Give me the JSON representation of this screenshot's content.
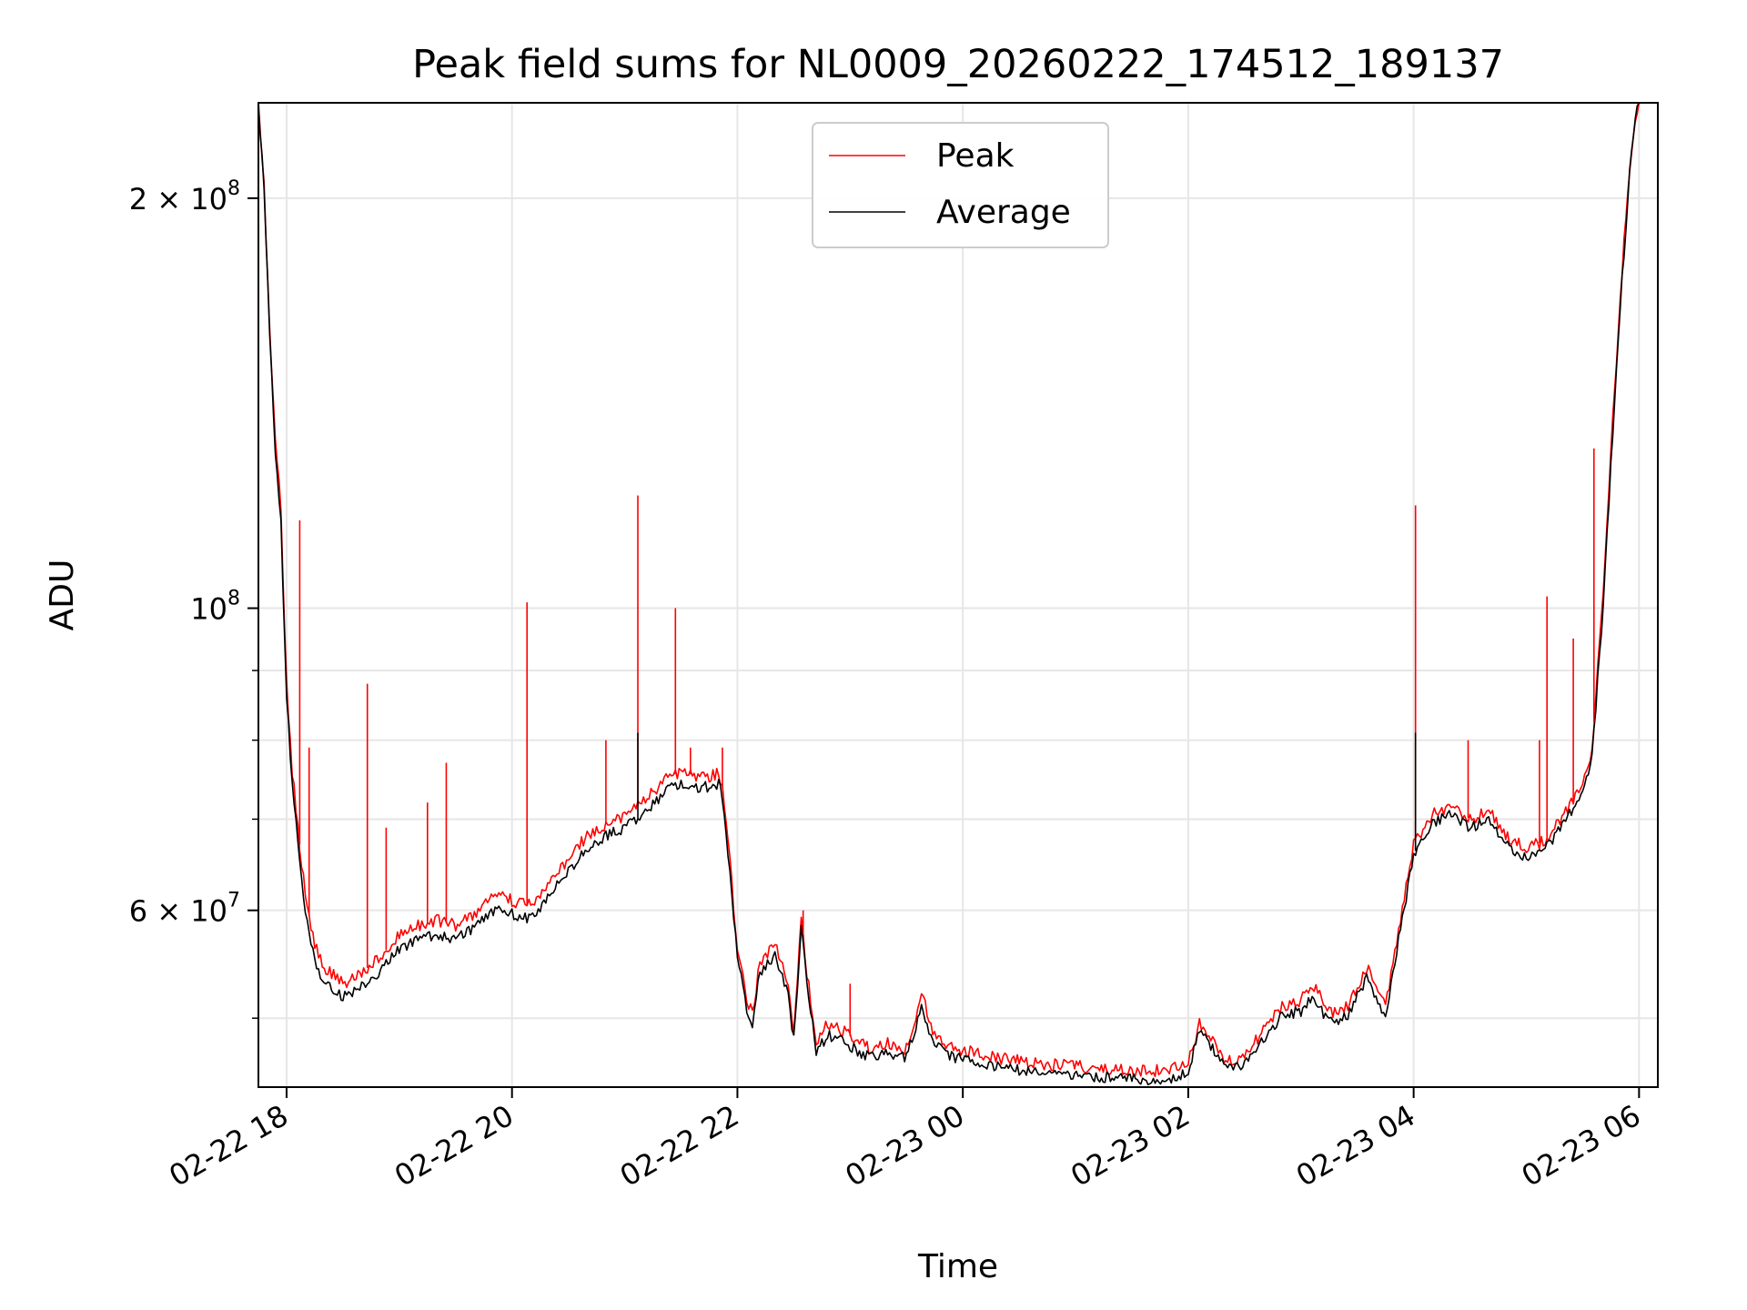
{
  "chart_data": {
    "type": "line",
    "title": "Peak field sums for NL0009_20260222_174512_189137",
    "xlabel": "Time",
    "ylabel": "ADU",
    "y_scale": "log",
    "xlim": [
      "2026-02-22T17:45",
      "2026-02-23T06:10"
    ],
    "ylim": [
      44500000,
      235000000
    ],
    "x_ticks": [
      {
        "value": "2026-02-22T18:00",
        "label": "02-22 18"
      },
      {
        "value": "2026-02-22T20:00",
        "label": "02-22 20"
      },
      {
        "value": "2026-02-22T22:00",
        "label": "02-22 22"
      },
      {
        "value": "2026-02-23T00:00",
        "label": "02-23 00"
      },
      {
        "value": "2026-02-23T02:00",
        "label": "02-23 02"
      },
      {
        "value": "2026-02-23T04:00",
        "label": "02-23 04"
      },
      {
        "value": "2026-02-23T06:00",
        "label": "02-23 06"
      }
    ],
    "y_ticks": [
      {
        "value": 200000000,
        "base": "2 × 10",
        "exp": "8"
      },
      {
        "value": 100000000,
        "base": "10",
        "exp": "8"
      },
      {
        "value": 60000000,
        "base": "6 × 10",
        "exp": "7"
      }
    ],
    "y_minor_ticks": [
      50000000,
      70000000,
      80000000,
      90000000
    ],
    "grid": true,
    "legend": {
      "placement": "top-center"
    },
    "series": [
      {
        "name": "Peak",
        "color": "#ff0000",
        "points": [
          [
            "2026-02-22T17:45",
            235000000
          ],
          [
            "2026-02-22T17:48",
            205000000
          ],
          [
            "2026-02-22T17:51",
            160000000
          ],
          [
            "2026-02-22T17:54",
            134000000
          ],
          [
            "2026-02-22T17:57",
            118000000
          ],
          [
            "2026-02-22T18:00",
            88000000
          ],
          [
            "2026-02-22T18:03",
            76000000
          ],
          [
            "2026-02-22T18:06",
            69000000
          ],
          [
            "2026-02-22T18:10",
            61500000
          ],
          [
            "2026-02-22T18:15",
            56500000
          ],
          [
            "2026-02-22T18:20",
            54500000
          ],
          [
            "2026-02-22T18:30",
            53000000
          ],
          [
            "2026-02-22T18:40",
            54000000
          ],
          [
            "2026-02-22T18:50",
            55500000
          ],
          [
            "2026-02-22T19:00",
            57500000
          ],
          [
            "2026-02-22T19:10",
            58500000
          ],
          [
            "2026-02-22T19:20",
            59000000
          ],
          [
            "2026-02-22T19:30",
            58500000
          ],
          [
            "2026-02-22T19:40",
            59500000
          ],
          [
            "2026-02-22T19:50",
            61500000
          ],
          [
            "2026-02-22T20:00",
            61000000
          ],
          [
            "2026-02-22T20:10",
            60500000
          ],
          [
            "2026-02-22T20:20",
            63000000
          ],
          [
            "2026-02-22T20:30",
            65500000
          ],
          [
            "2026-02-22T20:40",
            68000000
          ],
          [
            "2026-02-22T20:50",
            69500000
          ],
          [
            "2026-02-22T21:00",
            70500000
          ],
          [
            "2026-02-22T21:10",
            72000000
          ],
          [
            "2026-02-22T21:20",
            74500000
          ],
          [
            "2026-02-22T21:30",
            76000000
          ],
          [
            "2026-02-22T21:40",
            75000000
          ],
          [
            "2026-02-22T21:50",
            75500000
          ],
          [
            "2026-02-22T21:52",
            74000000
          ],
          [
            "2026-02-22T21:56",
            65000000
          ],
          [
            "2026-02-22T22:00",
            56500000
          ],
          [
            "2026-02-22T22:05",
            51500000
          ],
          [
            "2026-02-22T22:08",
            50500000
          ],
          [
            "2026-02-22T22:12",
            55000000
          ],
          [
            "2026-02-22T22:20",
            56500000
          ],
          [
            "2026-02-22T22:27",
            53000000
          ],
          [
            "2026-02-22T22:30",
            49000000
          ],
          [
            "2026-02-22T22:34",
            59500000
          ],
          [
            "2026-02-22T22:37",
            54000000
          ],
          [
            "2026-02-22T22:42",
            48000000
          ],
          [
            "2026-02-22T22:48",
            49500000
          ],
          [
            "2026-02-22T22:55",
            49000000
          ],
          [
            "2026-02-22T23:00",
            48500000
          ],
          [
            "2026-02-22T23:10",
            47500000
          ],
          [
            "2026-02-22T23:20",
            48000000
          ],
          [
            "2026-02-22T23:30",
            47500000
          ],
          [
            "2026-02-22T23:38",
            52000000
          ],
          [
            "2026-02-22T23:45",
            48500000
          ],
          [
            "2026-02-22T23:55",
            47500000
          ],
          [
            "2026-02-23T00:10",
            47000000
          ],
          [
            "2026-02-23T00:30",
            46500000
          ],
          [
            "2026-02-23T00:50",
            46200000
          ],
          [
            "2026-02-23T01:10",
            46000000
          ],
          [
            "2026-02-23T01:30",
            45800000
          ],
          [
            "2026-02-23T01:50",
            45700000
          ],
          [
            "2026-02-23T02:00",
            46500000
          ],
          [
            "2026-02-23T02:06",
            49500000
          ],
          [
            "2026-02-23T02:12",
            48500000
          ],
          [
            "2026-02-23T02:20",
            46500000
          ],
          [
            "2026-02-23T02:30",
            47000000
          ],
          [
            "2026-02-23T02:40",
            49000000
          ],
          [
            "2026-02-23T02:50",
            51000000
          ],
          [
            "2026-02-23T03:00",
            51500000
          ],
          [
            "2026-02-23T03:06",
            53000000
          ],
          [
            "2026-02-23T03:15",
            50500000
          ],
          [
            "2026-02-23T03:25",
            51000000
          ],
          [
            "2026-02-23T03:35",
            54500000
          ],
          [
            "2026-02-23T03:45",
            51000000
          ],
          [
            "2026-02-23T03:50",
            56000000
          ],
          [
            "2026-02-23T04:00",
            67000000
          ],
          [
            "2026-02-23T04:10",
            70500000
          ],
          [
            "2026-02-23T04:20",
            71500000
          ],
          [
            "2026-02-23T04:30",
            70000000
          ],
          [
            "2026-02-23T04:40",
            71000000
          ],
          [
            "2026-02-23T04:50",
            68000000
          ],
          [
            "2026-02-23T05:00",
            66500000
          ],
          [
            "2026-02-23T05:10",
            67500000
          ],
          [
            "2026-02-23T05:20",
            70500000
          ],
          [
            "2026-02-23T05:30",
            74000000
          ],
          [
            "2026-02-23T05:35",
            79000000
          ],
          [
            "2026-02-23T05:40",
            98000000
          ],
          [
            "2026-02-23T05:45",
            130000000
          ],
          [
            "2026-02-23T05:50",
            170000000
          ],
          [
            "2026-02-23T05:55",
            210000000
          ],
          [
            "2026-02-23T05:58",
            230000000
          ],
          [
            "2026-02-23T06:00",
            235000000
          ]
        ]
      },
      {
        "name": "Average",
        "color": "#000000",
        "points": [
          [
            "2026-02-22T17:45",
            235000000
          ],
          [
            "2026-02-22T17:48",
            204000000
          ],
          [
            "2026-02-22T17:51",
            158000000
          ],
          [
            "2026-02-22T17:54",
            131000000
          ],
          [
            "2026-02-22T17:57",
            116000000
          ],
          [
            "2026-02-22T18:00",
            86000000
          ],
          [
            "2026-02-22T18:03",
            74500000
          ],
          [
            "2026-02-22T18:06",
            67500000
          ],
          [
            "2026-02-22T18:10",
            60000000
          ],
          [
            "2026-02-22T18:15",
            55000000
          ],
          [
            "2026-02-22T18:20",
            53000000
          ],
          [
            "2026-02-22T18:30",
            51800000
          ],
          [
            "2026-02-22T18:40",
            52800000
          ],
          [
            "2026-02-22T18:50",
            54200000
          ],
          [
            "2026-02-22T19:00",
            56200000
          ],
          [
            "2026-02-22T19:10",
            57200000
          ],
          [
            "2026-02-22T19:20",
            57600000
          ],
          [
            "2026-02-22T19:30",
            57200000
          ],
          [
            "2026-02-22T19:40",
            58200000
          ],
          [
            "2026-02-22T19:50",
            60000000
          ],
          [
            "2026-02-22T20:00",
            59600000
          ],
          [
            "2026-02-22T20:10",
            59000000
          ],
          [
            "2026-02-22T20:20",
            61500000
          ],
          [
            "2026-02-22T20:30",
            64000000
          ],
          [
            "2026-02-22T20:40",
            66500000
          ],
          [
            "2026-02-22T20:50",
            68000000
          ],
          [
            "2026-02-22T21:00",
            69000000
          ],
          [
            "2026-02-22T21:10",
            70500000
          ],
          [
            "2026-02-22T21:20",
            73000000
          ],
          [
            "2026-02-22T21:30",
            74500000
          ],
          [
            "2026-02-22T21:40",
            73800000
          ],
          [
            "2026-02-22T21:50",
            74200000
          ],
          [
            "2026-02-22T21:52",
            72800000
          ],
          [
            "2026-02-22T21:56",
            64000000
          ],
          [
            "2026-02-22T22:00",
            55500000
          ],
          [
            "2026-02-22T22:05",
            50500000
          ],
          [
            "2026-02-22T22:08",
            49600000
          ],
          [
            "2026-02-22T22:12",
            54000000
          ],
          [
            "2026-02-22T22:20",
            55500000
          ],
          [
            "2026-02-22T22:27",
            52000000
          ],
          [
            "2026-02-22T22:30",
            48200000
          ],
          [
            "2026-02-22T22:34",
            58500000
          ],
          [
            "2026-02-22T22:37",
            53200000
          ],
          [
            "2026-02-22T22:42",
            47200000
          ],
          [
            "2026-02-22T22:48",
            48600000
          ],
          [
            "2026-02-22T22:55",
            48200000
          ],
          [
            "2026-02-22T23:00",
            47700000
          ],
          [
            "2026-02-22T23:10",
            46800000
          ],
          [
            "2026-02-22T23:20",
            47200000
          ],
          [
            "2026-02-22T23:30",
            46800000
          ],
          [
            "2026-02-22T23:38",
            51000000
          ],
          [
            "2026-02-22T23:45",
            47700000
          ],
          [
            "2026-02-22T23:55",
            46800000
          ],
          [
            "2026-02-23T00:10",
            46300000
          ],
          [
            "2026-02-23T00:30",
            45800000
          ],
          [
            "2026-02-23T00:50",
            45500000
          ],
          [
            "2026-02-23T01:10",
            45300000
          ],
          [
            "2026-02-23T01:30",
            45100000
          ],
          [
            "2026-02-23T01:50",
            45000000
          ],
          [
            "2026-02-23T02:00",
            45800000
          ],
          [
            "2026-02-23T02:06",
            48800000
          ],
          [
            "2026-02-23T02:12",
            47700000
          ],
          [
            "2026-02-23T02:20",
            45800000
          ],
          [
            "2026-02-23T02:30",
            46300000
          ],
          [
            "2026-02-23T02:40",
            48200000
          ],
          [
            "2026-02-23T02:50",
            50200000
          ],
          [
            "2026-02-23T03:00",
            50600000
          ],
          [
            "2026-02-23T03:06",
            52000000
          ],
          [
            "2026-02-23T03:15",
            49600000
          ],
          [
            "2026-02-23T03:25",
            50200000
          ],
          [
            "2026-02-23T03:35",
            53500000
          ],
          [
            "2026-02-23T03:45",
            50200000
          ],
          [
            "2026-02-23T03:50",
            55000000
          ],
          [
            "2026-02-23T04:00",
            66000000
          ],
          [
            "2026-02-23T04:10",
            69500000
          ],
          [
            "2026-02-23T04:20",
            70500000
          ],
          [
            "2026-02-23T04:30",
            69000000
          ],
          [
            "2026-02-23T04:40",
            70000000
          ],
          [
            "2026-02-23T04:50",
            67000000
          ],
          [
            "2026-02-23T05:00",
            65500000
          ],
          [
            "2026-02-23T05:10",
            66500000
          ],
          [
            "2026-02-23T05:20",
            69500000
          ],
          [
            "2026-02-23T05:30",
            73000000
          ],
          [
            "2026-02-23T05:35",
            78000000
          ],
          [
            "2026-02-23T05:40",
            96000000
          ],
          [
            "2026-02-23T05:45",
            127000000
          ],
          [
            "2026-02-23T05:50",
            167000000
          ],
          [
            "2026-02-23T05:55",
            208000000
          ],
          [
            "2026-02-23T05:58",
            229000000
          ],
          [
            "2026-02-23T06:00",
            235000000
          ]
        ]
      }
    ],
    "spikes": [
      {
        "series": "Peak",
        "points": [
          [
            "2026-02-22T18:07",
            116000000
          ],
          [
            "2026-02-22T18:12",
            79000000
          ],
          [
            "2026-02-22T18:43",
            88000000
          ],
          [
            "2026-02-22T18:53",
            69000000
          ],
          [
            "2026-02-22T19:15",
            72000000
          ],
          [
            "2026-02-22T19:25",
            77000000
          ],
          [
            "2026-02-22T20:08",
            101000000
          ],
          [
            "2026-02-22T20:50",
            80000000
          ],
          [
            "2026-02-22T21:07",
            121000000
          ],
          [
            "2026-02-22T21:27",
            100000000
          ],
          [
            "2026-02-22T21:35",
            79000000
          ],
          [
            "2026-02-22T21:52",
            79000000
          ],
          [
            "2026-02-22T22:35",
            60000000
          ],
          [
            "2026-02-22T23:00",
            53000000
          ],
          [
            "2026-02-23T04:01",
            119000000
          ],
          [
            "2026-02-23T04:29",
            80000000
          ],
          [
            "2026-02-23T05:07",
            80000000
          ],
          [
            "2026-02-23T05:11",
            102000000
          ],
          [
            "2026-02-23T05:25",
            95000000
          ],
          [
            "2026-02-23T05:36",
            131000000
          ]
        ]
      },
      {
        "series": "Average",
        "points": [
          [
            "2026-02-22T21:07",
            81000000
          ],
          [
            "2026-02-23T04:01",
            81000000
          ]
        ]
      }
    ]
  }
}
